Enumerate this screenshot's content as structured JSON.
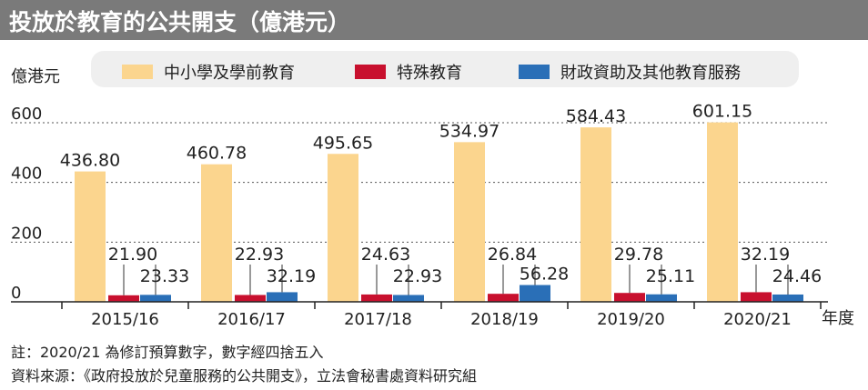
{
  "header": {
    "title": "投放於教育的公共開支（億港元）"
  },
  "colors": {
    "primary": "#fbd58e",
    "special": "#c8102e",
    "other": "#2a6fb7",
    "title_bg": "#7a7a7a"
  },
  "chart_data": {
    "type": "bar",
    "title": "投放於教育的公共開支（億港元）",
    "ylabel": "億港元",
    "xlabel": "年度",
    "ylim": [
      0,
      600
    ],
    "yticks": [
      "0",
      "200",
      "400",
      "600"
    ],
    "grid": "dotted horizontal",
    "legend_position": "top",
    "categories": [
      "2015/16",
      "2016/17",
      "2017/18",
      "2018/19",
      "2019/20",
      "2020/21"
    ],
    "series": [
      {
        "name": "中小學及學前教育",
        "color": "#fbd58e",
        "values": [
          436.8,
          460.78,
          495.65,
          534.97,
          584.43,
          601.15
        ],
        "labels": [
          "436.80",
          "460.78",
          "495.65",
          "534.97",
          "584.43",
          "601.15"
        ]
      },
      {
        "name": "特殊教育",
        "color": "#c8102e",
        "values": [
          21.9,
          22.93,
          24.63,
          26.84,
          29.78,
          32.19
        ],
        "labels": [
          "21.90",
          "22.93",
          "24.63",
          "26.84",
          "29.78",
          "32.19"
        ]
      },
      {
        "name": "財政資助及其他教育服務",
        "color": "#2a6fb7",
        "values": [
          23.33,
          32.19,
          22.93,
          56.28,
          25.11,
          24.46
        ],
        "labels": [
          "23.33",
          "32.19",
          "22.93",
          "56.28",
          "25.11",
          "24.46"
        ]
      }
    ]
  },
  "footnotes": {
    "note": "註：2020/21 為修訂預算數字，數字經四捨五入",
    "source": "資料來源：《政府投放於兒童服務的公共開支》，立法會秘書處資料研究組"
  }
}
